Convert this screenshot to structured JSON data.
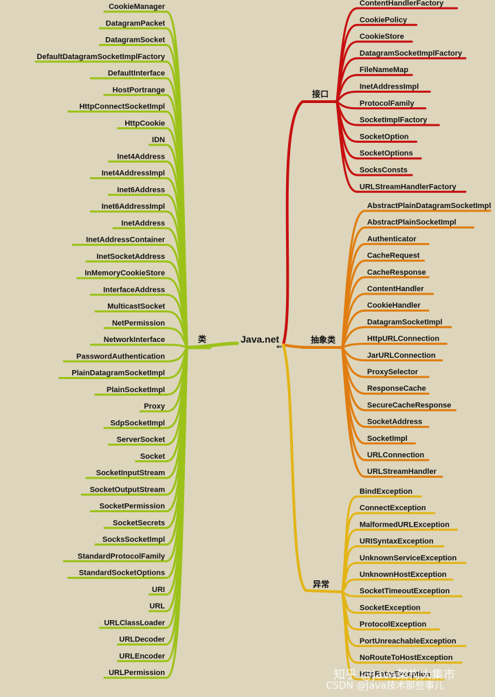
{
  "root": "Java.net",
  "colors": {
    "background": "#ddd6bd",
    "class_branch": "#9cc21a",
    "interface_branch": "#c70f0f",
    "abstract_branch": "#e07d10",
    "exception_branch": "#e3b416"
  },
  "branches": {
    "classes": {
      "label": "类",
      "items": [
        "CookieManager",
        "DatagramPacket",
        "DatagramSocket",
        "DefaultDatagramSocketImplFactory",
        "DefaultInterface",
        "HostPortrange",
        "HttpConnectSocketImpl",
        "HttpCookie",
        "IDN",
        "Inet4Address",
        "Inet4AddressImpl",
        "Inet6Address",
        "Inet6AddressImpl",
        "InetAddress",
        "InetAddressContainer",
        "InetSocketAddress",
        "InMemoryCookieStore",
        "InterfaceAddress",
        "MulticastSocket",
        "NetPermission",
        "NetworkInterface",
        "PasswordAuthentication",
        "PlainDatagramSocketImpl",
        "PlainSocketImpl",
        "Proxy",
        "SdpSocketImpl",
        "ServerSocket",
        "Socket",
        "SocketInputStream",
        "SocketOutputStream",
        "SocketPermission",
        "SocketSecrets",
        "SocksSocketImpl",
        "StandardProtocolFamily",
        "StandardSocketOptions",
        "URI",
        "URL",
        "URLClassLoader",
        "URLDecoder",
        "URLEncoder",
        "URLPermission"
      ]
    },
    "interfaces": {
      "label": "接口",
      "items": [
        "ContentHandlerFactory",
        "CookiePolicy",
        "CookieStore",
        "DatagramSocketImplFactory",
        "FileNameMap",
        "InetAddressImpl",
        "ProtocolFamily",
        "SocketImplFactory",
        "SocketOption",
        "SocketOptions",
        "SocksConsts",
        "URLStreamHandlerFactory"
      ]
    },
    "abstract_classes": {
      "label": "抽象类",
      "items": [
        "AbstractPlainDatagramSocketImpl",
        "AbstractPlainSocketImpl",
        "Authenticator",
        "CacheRequest",
        "CacheResponse",
        "ContentHandler",
        "CookieHandler",
        "DatagramSocketImpl",
        "HttpURLConnection",
        "JarURLConnection",
        "ProxySelector",
        "ResponseCache",
        "SecureCacheResponse",
        "SocketAddress",
        "SocketImpl",
        "URLConnection",
        "URLStreamHandler"
      ]
    },
    "exceptions": {
      "label": "异常",
      "items": [
        "BindException",
        "ConnectException",
        "MalformedURLException",
        "URISyntaxException",
        "UnknownServiceException",
        "UnknownHostException",
        "SocketTimeoutException",
        "SocketException",
        "ProtocolException",
        "PortUnreachableException",
        "NoRouteToHostException",
        "HttpRetryException"
      ]
    }
  },
  "watermark": {
    "line1": "知乎 @java架构大集市",
    "line2": "CSDN @Java技术那些事儿"
  }
}
